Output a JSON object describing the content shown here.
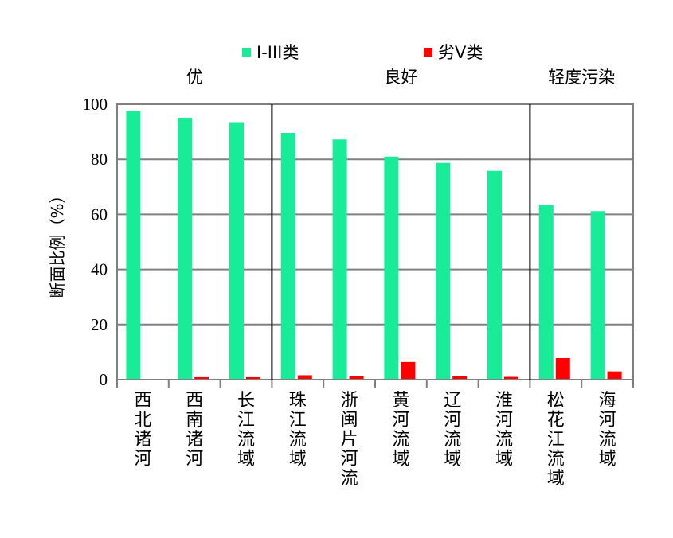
{
  "chart_data": {
    "type": "bar",
    "ylabel": "断面比例（%）",
    "ylim": [
      0,
      100
    ],
    "yticks": [
      0,
      20,
      40,
      60,
      80,
      100
    ],
    "grid": true,
    "legend_position": "top",
    "categories": [
      "西北诸河",
      "西南诸河",
      "长江流域",
      "珠江流域",
      "浙闽片河流",
      "黄河流域",
      "辽河流域",
      "淮河流域",
      "松花江流域",
      "海河流域"
    ],
    "series": [
      {
        "name": "I-III类",
        "color": "#19ec98",
        "values": [
          97.6,
          95.1,
          93.5,
          89.6,
          87.2,
          81.0,
          78.7,
          75.8,
          63.4,
          61.2
        ]
      },
      {
        "name": "劣V类",
        "color": "#ff0000",
        "values": [
          0,
          0.9,
          0.9,
          1.6,
          1.4,
          6.4,
          1.2,
          1.0,
          7.8,
          3.0
        ]
      }
    ],
    "groups": [
      {
        "label": "优",
        "from": 0,
        "to": 2
      },
      {
        "label": "良好",
        "from": 3,
        "to": 7
      },
      {
        "label": "轻度污染",
        "from": 8,
        "to": 9
      }
    ]
  }
}
